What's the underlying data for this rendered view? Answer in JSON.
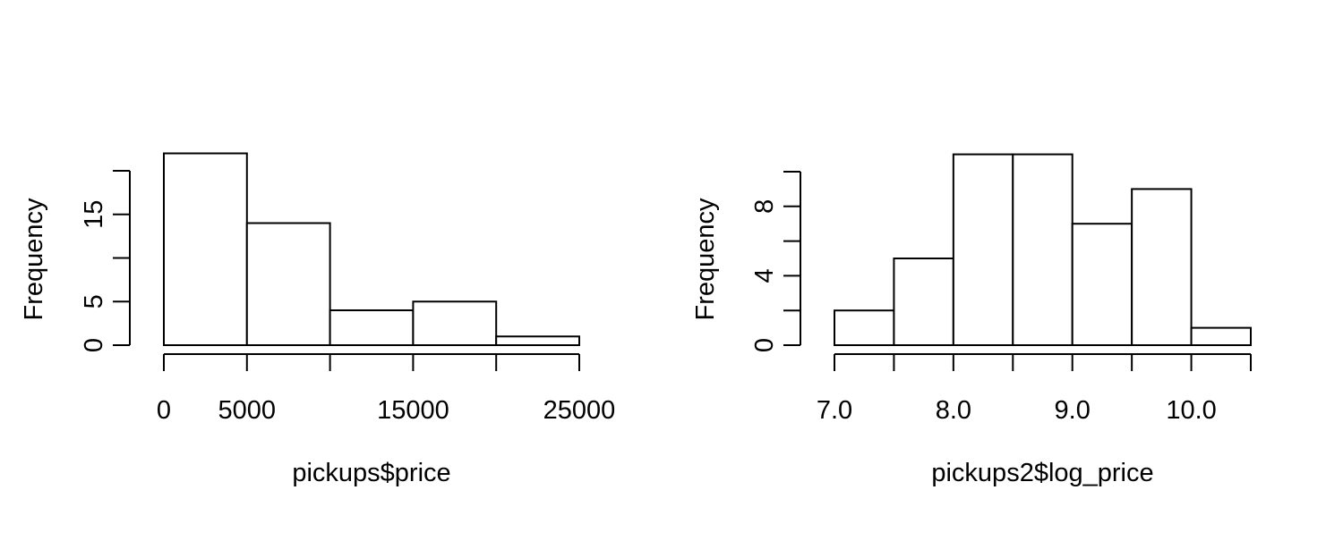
{
  "chart_data": [
    {
      "type": "bar",
      "title": "",
      "xlabel": "pickups$price",
      "ylabel": "Frequency",
      "bins": [
        [
          0,
          5000
        ],
        [
          5000,
          10000
        ],
        [
          10000,
          15000
        ],
        [
          15000,
          20000
        ],
        [
          20000,
          25000
        ]
      ],
      "values": [
        22,
        14,
        4,
        5,
        1
      ],
      "xlim": [
        0,
        25000
      ],
      "ylim": [
        0,
        22
      ],
      "x_ticks": [
        0,
        5000,
        10000,
        15000,
        20000,
        25000
      ],
      "x_tick_labels": [
        "0",
        "5000",
        "",
        "15000",
        "",
        "25000"
      ],
      "y_ticks": [
        0,
        5,
        10,
        15,
        20
      ],
      "y_tick_labels": [
        "0",
        "5",
        "",
        "15",
        ""
      ],
      "grid": false,
      "bar_fill": "#ffffff",
      "bar_stroke": "#000000"
    },
    {
      "type": "bar",
      "title": "",
      "xlabel": "pickups2$log_price",
      "ylabel": "Frequency",
      "bins": [
        [
          7.0,
          7.5
        ],
        [
          7.5,
          8.0
        ],
        [
          8.0,
          8.5
        ],
        [
          8.5,
          9.0
        ],
        [
          9.0,
          9.5
        ],
        [
          9.5,
          10.0
        ],
        [
          10.0,
          10.5
        ]
      ],
      "values": [
        2,
        5,
        11,
        11,
        7,
        9,
        1
      ],
      "xlim": [
        7.0,
        10.5
      ],
      "ylim": [
        0,
        11
      ],
      "x_ticks": [
        7.0,
        7.5,
        8.0,
        8.5,
        9.0,
        9.5,
        10.0,
        10.5
      ],
      "x_tick_labels": [
        "7.0",
        "",
        "8.0",
        "",
        "9.0",
        "",
        "10.0",
        ""
      ],
      "y_ticks": [
        0,
        2,
        4,
        6,
        8,
        10
      ],
      "y_tick_labels": [
        "0",
        "",
        "4",
        "",
        "8",
        ""
      ],
      "grid": false,
      "bar_fill": "#ffffff",
      "bar_stroke": "#000000"
    }
  ]
}
